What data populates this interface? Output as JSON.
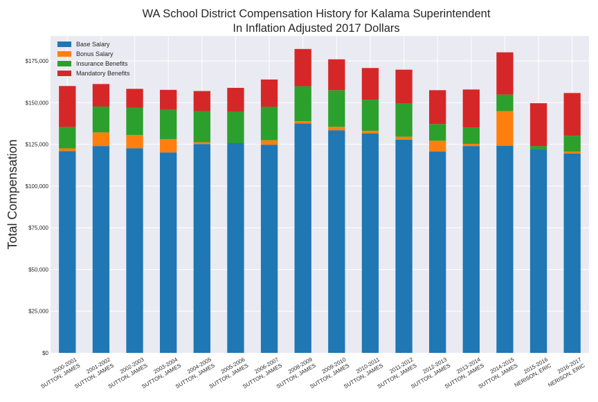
{
  "chart_data": {
    "type": "bar",
    "stacked": true,
    "title": "WA School District Compensation History for Kalama Superintendent",
    "subtitle": "In Inflation Adjusted 2017 Dollars",
    "ylabel": "Total Compensation",
    "xlabel": "",
    "ylim": [
      0,
      190000
    ],
    "yticks": [
      0,
      25000,
      50000,
      75000,
      100000,
      125000,
      150000,
      175000
    ],
    "ytick_labels": [
      "$0",
      "$25,000",
      "$50,000",
      "$75,000",
      "$100,000",
      "$125,000",
      "$150,000",
      "$175,000"
    ],
    "grid": true,
    "legend_position": "top-left",
    "categories": [
      [
        "2000-2001",
        "SUTTON, JAMES"
      ],
      [
        "2001-2002",
        "SUTTON, JAMES"
      ],
      [
        "2002-2003",
        "SUTTON, JAMES"
      ],
      [
        "2003-2004",
        "SUTTON, JAMES"
      ],
      [
        "2004-2005",
        "SUTTON, JAMES"
      ],
      [
        "2005-2006",
        "SUTTON, JAMES"
      ],
      [
        "2006-2007",
        "SUTTON, JAMES"
      ],
      [
        "2008-2009",
        "SUTTON, JAMES"
      ],
      [
        "2009-2010",
        "SUTTON, JAMES"
      ],
      [
        "2010-2011",
        "SUTTON, JAMES"
      ],
      [
        "2011-2012",
        "SUTTON, JAMES"
      ],
      [
        "2012-2013",
        "SUTTON, JAMES"
      ],
      [
        "2013-2014",
        "SUTTON, JAMES"
      ],
      [
        "2014-2015",
        "SUTTON, JAMES"
      ],
      [
        "2015-2016",
        "NERISON, ERIC"
      ],
      [
        "2016-2017",
        "NERISON, ERIC"
      ]
    ],
    "series": [
      {
        "name": "Base Salary",
        "color": "#1f77b4",
        "values": [
          121000,
          124000,
          122700,
          120200,
          125200,
          125700,
          124800,
          137500,
          133500,
          131500,
          127800,
          120700,
          124000,
          124200,
          122000,
          119500
        ]
      },
      {
        "name": "Bonus Salary",
        "color": "#ff7f0e",
        "values": [
          1600,
          8200,
          7900,
          8000,
          1100,
          0,
          2700,
          1400,
          2000,
          1600,
          1800,
          6500,
          1300,
          20800,
          0,
          1200
        ]
      },
      {
        "name": "Insurance Benefits",
        "color": "#2ca02c",
        "values": [
          12800,
          15500,
          16300,
          17500,
          18700,
          18900,
          20000,
          21000,
          22000,
          18700,
          19900,
          10000,
          9900,
          9900,
          2000,
          9500
        ]
      },
      {
        "name": "Mandatory Benefits",
        "color": "#d62728",
        "values": [
          24600,
          13500,
          11400,
          12000,
          12000,
          14300,
          16400,
          22300,
          18500,
          19000,
          20300,
          20300,
          22700,
          25300,
          25700,
          25600
        ]
      }
    ]
  }
}
